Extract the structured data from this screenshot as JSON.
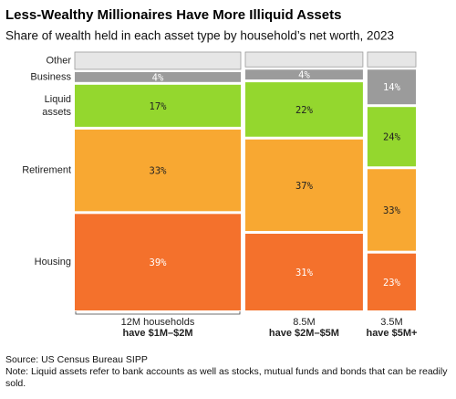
{
  "chart_data": {
    "type": "mekko",
    "title": "Less-Wealthy Millionaires Have More Illiquid Assets",
    "subtitle": "Share of wealth held in each asset type by household’s net worth, 2023",
    "widths": [
      12,
      8.5,
      3.5
    ],
    "width_labels": [
      "12M households",
      "8.5M",
      "3.5M"
    ],
    "categories": [
      "have $1M–$2M",
      "have $2M–$5M",
      "have $5M+"
    ],
    "series": [
      {
        "name": "Other",
        "color": "#e6e6e6",
        "values": [
          7,
          6,
          6
        ],
        "value_labels": [
          null,
          null,
          null
        ]
      },
      {
        "name": "Business",
        "color": "#9b9b9b",
        "values": [
          4,
          4,
          14
        ],
        "value_labels": [
          "4%",
          "4%",
          "14%"
        ]
      },
      {
        "name": "Liquid assets",
        "color": "#94d72e",
        "values": [
          17,
          22,
          24
        ],
        "value_labels": [
          "17%",
          "22%",
          "24%"
        ]
      },
      {
        "name": "Retirement",
        "color": "#f8a832",
        "values": [
          33,
          37,
          33
        ],
        "value_labels": [
          "33%",
          "37%",
          "33%"
        ]
      },
      {
        "name": "Housing",
        "color": "#f4712c",
        "values": [
          39,
          31,
          23
        ],
        "value_labels": [
          "39%",
          "31%",
          "23%"
        ]
      }
    ],
    "source": "Source: US Census Bureau SIPP",
    "note": "Note: Liquid assets refer to bank accounts as well as stocks, mutual funds and bonds that can be readily sold."
  }
}
